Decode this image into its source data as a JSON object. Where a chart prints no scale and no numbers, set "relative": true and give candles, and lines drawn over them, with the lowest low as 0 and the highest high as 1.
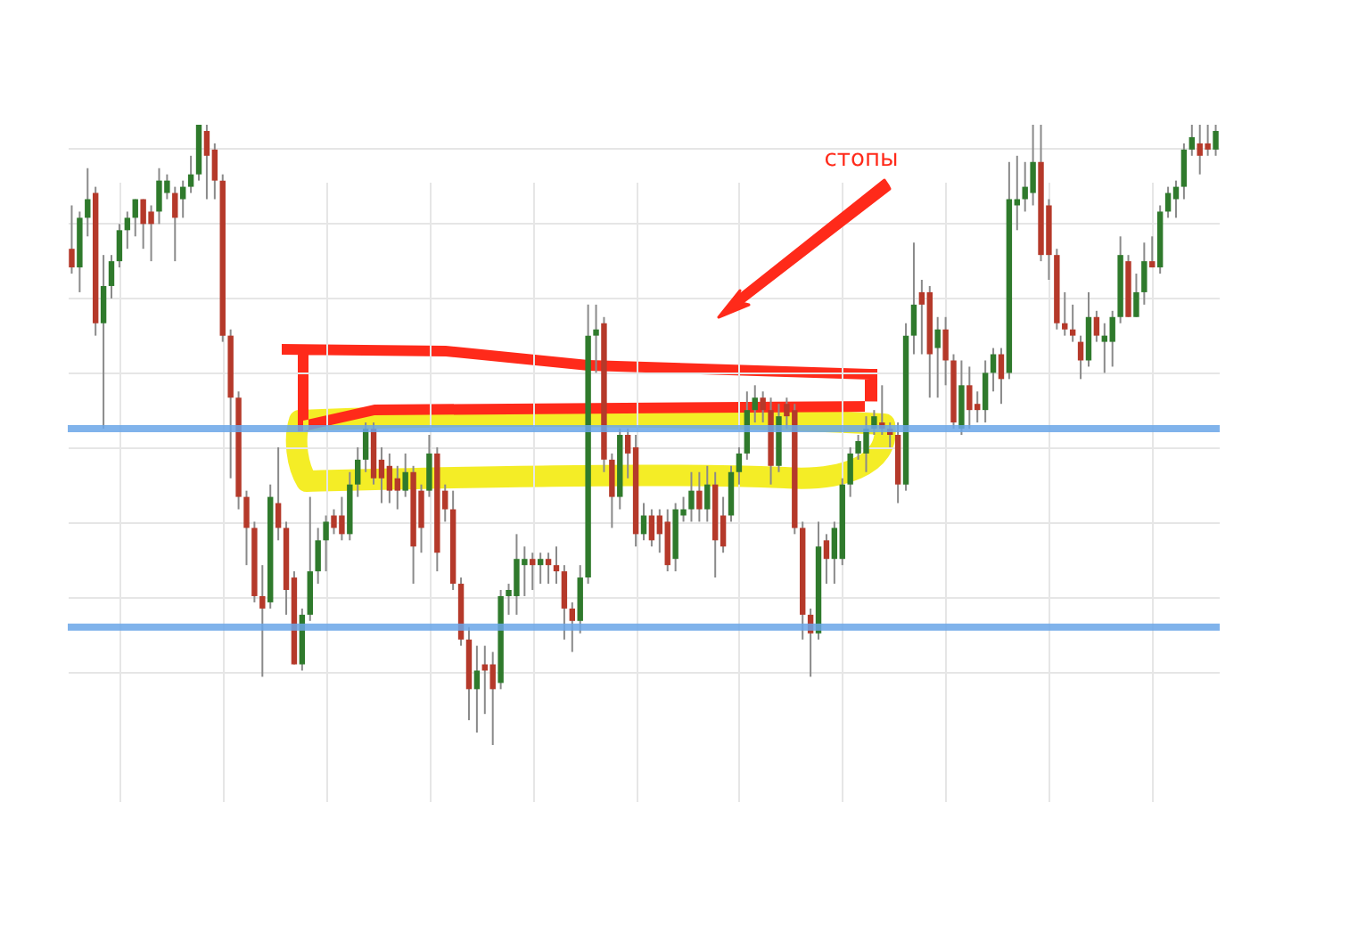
{
  "chart_data": {
    "type": "candlestick",
    "relative": true,
    "grid": true,
    "annotations": [
      "стопы"
    ],
    "ref_lines": [
      {
        "axis": "y",
        "value": 0.51,
        "color": "#6aa6e8"
      },
      {
        "axis": "y",
        "value": 0.19,
        "color": "#6aa6e8"
      }
    ],
    "categories": [
      null,
      null,
      null,
      null,
      null,
      null,
      null,
      null,
      null,
      null,
      null,
      null,
      null,
      null,
      null,
      null,
      null,
      null,
      null,
      null,
      null,
      null,
      null,
      null,
      null,
      null,
      null,
      null,
      null,
      null,
      null,
      null,
      null,
      null,
      null,
      null,
      null,
      null,
      null,
      null,
      null,
      null,
      null,
      null,
      null,
      null,
      null,
      null,
      null,
      null,
      null,
      null,
      null,
      null,
      null,
      null,
      null,
      null,
      null,
      null,
      null,
      null,
      null,
      null,
      null,
      null,
      null,
      null,
      null,
      null,
      null,
      null,
      null,
      null,
      null,
      null,
      null,
      null,
      null,
      null,
      null,
      null,
      null,
      null,
      null,
      null,
      null,
      null,
      null,
      null,
      null,
      null,
      null,
      null,
      null,
      null,
      null,
      null,
      null,
      null,
      null,
      null,
      null,
      null,
      null,
      null,
      null,
      null,
      null,
      null,
      null,
      null,
      null,
      null,
      null,
      null,
      null,
      null,
      null,
      null,
      null,
      null,
      null,
      null,
      null,
      null,
      null,
      null,
      null,
      null,
      null,
      null,
      null,
      null,
      null,
      null,
      null,
      null,
      null,
      null,
      null,
      null,
      null,
      null,
      null
    ],
    "ohlc": [
      [
        0.8,
        0.87,
        0.76,
        0.77
      ],
      [
        0.77,
        0.86,
        0.73,
        0.85
      ],
      [
        0.85,
        0.93,
        0.82,
        0.88
      ],
      [
        0.89,
        0.9,
        0.66,
        0.68
      ],
      [
        0.68,
        0.79,
        0.51,
        0.74
      ],
      [
        0.74,
        0.79,
        0.72,
        0.78
      ],
      [
        0.78,
        0.84,
        0.77,
        0.83
      ],
      [
        0.83,
        0.86,
        0.8,
        0.85
      ],
      [
        0.85,
        0.88,
        0.82,
        0.88
      ],
      [
        0.88,
        0.88,
        0.8,
        0.84
      ],
      [
        0.86,
        0.87,
        0.78,
        0.84
      ],
      [
        0.86,
        0.93,
        0.84,
        0.91
      ],
      [
        0.89,
        0.92,
        0.88,
        0.91
      ],
      [
        0.89,
        0.9,
        0.78,
        0.85
      ],
      [
        0.88,
        0.91,
        0.85,
        0.9
      ],
      [
        0.9,
        0.95,
        0.89,
        0.92
      ],
      [
        0.92,
        1,
        0.91,
        1
      ],
      [
        0.99,
        1,
        0.88,
        0.95
      ],
      [
        0.96,
        0.97,
        0.88,
        0.91
      ],
      [
        0.91,
        0.92,
        0.65,
        0.66
      ],
      [
        0.66,
        0.67,
        0.43,
        0.56
      ],
      [
        0.56,
        0.57,
        0.38,
        0.4
      ],
      [
        0.4,
        0.41,
        0.29,
        0.35
      ],
      [
        0.35,
        0.36,
        0.23,
        0.24
      ],
      [
        0.24,
        0.29,
        0.11,
        0.22
      ],
      [
        0.23,
        0.42,
        0.22,
        0.4
      ],
      [
        0.39,
        0.48,
        0.33,
        0.35
      ],
      [
        0.35,
        0.36,
        0.21,
        0.25
      ],
      [
        0.27,
        0.28,
        0.13,
        0.13
      ],
      [
        0.13,
        0.22,
        0.12,
        0.21
      ],
      [
        0.21,
        0.4,
        0.2,
        0.28
      ],
      [
        0.28,
        0.35,
        0.26,
        0.33
      ],
      [
        0.33,
        0.37,
        0.28,
        0.36
      ],
      [
        0.37,
        0.38,
        0.34,
        0.35
      ],
      [
        0.37,
        0.4,
        0.33,
        0.34
      ],
      [
        0.34,
        0.44,
        0.33,
        0.42
      ],
      [
        0.42,
        0.48,
        0.4,
        0.46
      ],
      [
        0.46,
        0.52,
        0.44,
        0.51
      ],
      [
        0.51,
        0.52,
        0.42,
        0.43
      ],
      [
        0.46,
        0.48,
        0.39,
        0.43
      ],
      [
        0.45,
        0.47,
        0.39,
        0.41
      ],
      [
        0.43,
        0.45,
        0.38,
        0.41
      ],
      [
        0.41,
        0.47,
        0.4,
        0.44
      ],
      [
        0.44,
        0.45,
        0.26,
        0.32
      ],
      [
        0.41,
        0.42,
        0.31,
        0.35
      ],
      [
        0.41,
        0.5,
        0.4,
        0.47
      ],
      [
        0.47,
        0.48,
        0.28,
        0.31
      ],
      [
        0.41,
        0.42,
        0.36,
        0.38
      ],
      [
        0.38,
        0.41,
        0.25,
        0.26
      ],
      [
        0.26,
        0.27,
        0.16,
        0.17
      ],
      [
        0.17,
        0.19,
        0.04,
        0.09
      ],
      [
        0.09,
        0.16,
        0.02,
        0.12
      ],
      [
        0.13,
        0.16,
        0.05,
        0.12
      ],
      [
        0.13,
        0.15,
        0,
        0.09
      ],
      [
        0.1,
        0.25,
        0.09,
        0.24
      ],
      [
        0.24,
        0.26,
        0.21,
        0.25
      ],
      [
        0.24,
        0.34,
        0.21,
        0.3
      ],
      [
        0.29,
        0.32,
        0.24,
        0.3
      ],
      [
        0.3,
        0.31,
        0.25,
        0.29
      ],
      [
        0.29,
        0.31,
        0.26,
        0.3
      ],
      [
        0.3,
        0.31,
        0.26,
        0.29
      ],
      [
        0.29,
        0.32,
        0.26,
        0.28
      ],
      [
        0.28,
        0.29,
        0.17,
        0.22
      ],
      [
        0.22,
        0.23,
        0.15,
        0.2
      ],
      [
        0.2,
        0.29,
        0.18,
        0.27
      ],
      [
        0.27,
        0.71,
        0.26,
        0.66
      ],
      [
        0.66,
        0.71,
        0.6,
        0.67
      ],
      [
        0.68,
        0.69,
        0.44,
        0.46
      ],
      [
        0.46,
        0.47,
        0.35,
        0.4
      ],
      [
        0.4,
        0.51,
        0.38,
        0.5
      ],
      [
        0.5,
        0.51,
        0.43,
        0.47
      ],
      [
        0.48,
        0.5,
        0.32,
        0.34
      ],
      [
        0.34,
        0.39,
        0.33,
        0.37
      ],
      [
        0.37,
        0.38,
        0.32,
        0.33
      ],
      [
        0.37,
        0.38,
        0.31,
        0.34
      ],
      [
        0.36,
        0.38,
        0.28,
        0.29
      ],
      [
        0.3,
        0.39,
        0.28,
        0.38
      ],
      [
        0.37,
        0.4,
        0.36,
        0.38
      ],
      [
        0.38,
        0.44,
        0.36,
        0.41
      ],
      [
        0.41,
        0.44,
        0.36,
        0.38
      ],
      [
        0.38,
        0.45,
        0.36,
        0.42
      ],
      [
        0.42,
        0.44,
        0.27,
        0.33
      ],
      [
        0.37,
        0.4,
        0.31,
        0.32
      ],
      [
        0.37,
        0.45,
        0.36,
        0.44
      ],
      [
        0.44,
        0.48,
        0.42,
        0.47
      ],
      [
        0.47,
        0.57,
        0.46,
        0.54
      ],
      [
        0.54,
        0.58,
        0.52,
        0.56
      ],
      [
        0.56,
        0.57,
        0.52,
        0.54
      ],
      [
        0.54,
        0.56,
        0.42,
        0.45
      ],
      [
        0.45,
        0.55,
        0.44,
        0.53
      ],
      [
        0.55,
        0.56,
        0.51,
        0.53
      ],
      [
        0.54,
        0.55,
        0.34,
        0.35
      ],
      [
        0.35,
        0.36,
        0.17,
        0.21
      ],
      [
        0.21,
        0.22,
        0.11,
        0.18
      ],
      [
        0.18,
        0.36,
        0.17,
        0.32
      ],
      [
        0.33,
        0.34,
        0.26,
        0.3
      ],
      [
        0.3,
        0.36,
        0.26,
        0.35
      ],
      [
        0.3,
        0.43,
        0.29,
        0.42
      ],
      [
        0.42,
        0.48,
        0.4,
        0.47
      ],
      [
        0.47,
        0.5,
        0.46,
        0.49
      ],
      [
        0.47,
        0.53,
        0.44,
        0.51
      ],
      [
        0.51,
        0.54,
        0.5,
        0.53
      ],
      [
        0.52,
        0.58,
        0.5,
        0.51
      ],
      [
        0.51,
        0.52,
        0.48,
        0.5
      ],
      [
        0.5,
        0.52,
        0.39,
        0.42
      ],
      [
        0.42,
        0.68,
        0.41,
        0.66
      ],
      [
        0.66,
        0.81,
        0.63,
        0.71
      ],
      [
        0.73,
        0.75,
        0.63,
        0.71
      ],
      [
        0.73,
        0.74,
        0.56,
        0.63
      ],
      [
        0.64,
        0.69,
        0.56,
        0.67
      ],
      [
        0.67,
        0.69,
        0.58,
        0.62
      ],
      [
        0.62,
        0.63,
        0.51,
        0.52
      ],
      [
        0.51,
        0.62,
        0.5,
        0.58
      ],
      [
        0.58,
        0.61,
        0.51,
        0.54
      ],
      [
        0.55,
        0.57,
        0.52,
        0.54
      ],
      [
        0.54,
        0.62,
        0.52,
        0.6
      ],
      [
        0.6,
        0.64,
        0.57,
        0.63
      ],
      [
        0.63,
        0.64,
        0.55,
        0.59
      ],
      [
        0.6,
        0.94,
        0.59,
        0.88
      ],
      [
        0.87,
        0.95,
        0.83,
        0.88
      ],
      [
        0.88,
        0.94,
        0.86,
        0.9
      ],
      [
        0.89,
        1,
        0.87,
        0.94
      ],
      [
        0.94,
        1,
        0.78,
        0.79
      ],
      [
        0.87,
        0.88,
        0.75,
        0.79
      ],
      [
        0.79,
        0.8,
        0.67,
        0.68
      ],
      [
        0.68,
        0.73,
        0.66,
        0.67
      ],
      [
        0.67,
        0.71,
        0.65,
        0.66
      ],
      [
        0.65,
        0.66,
        0.59,
        0.62
      ],
      [
        0.62,
        0.73,
        0.61,
        0.69
      ],
      [
        0.69,
        0.7,
        0.65,
        0.66
      ],
      [
        0.65,
        0.68,
        0.6,
        0.66
      ],
      [
        0.65,
        0.7,
        0.61,
        0.69
      ],
      [
        0.69,
        0.82,
        0.68,
        0.79
      ],
      [
        0.78,
        0.79,
        0.69,
        0.69
      ],
      [
        0.69,
        0.76,
        0.69,
        0.73
      ],
      [
        0.73,
        0.81,
        0.71,
        0.78
      ],
      [
        0.78,
        0.82,
        0.77,
        0.77
      ],
      [
        0.77,
        0.87,
        0.76,
        0.86
      ],
      [
        0.86,
        0.9,
        0.85,
        0.89
      ],
      [
        0.88,
        0.91,
        0.85,
        0.9
      ],
      [
        0.9,
        0.97,
        0.88,
        0.96
      ],
      [
        0.96,
        1,
        0.95,
        0.98
      ],
      [
        0.97,
        1,
        0.92,
        0.95
      ],
      [
        0.97,
        1,
        0.95,
        0.96
      ],
      [
        0.96,
        1,
        0.95,
        0.99
      ]
    ]
  }
}
